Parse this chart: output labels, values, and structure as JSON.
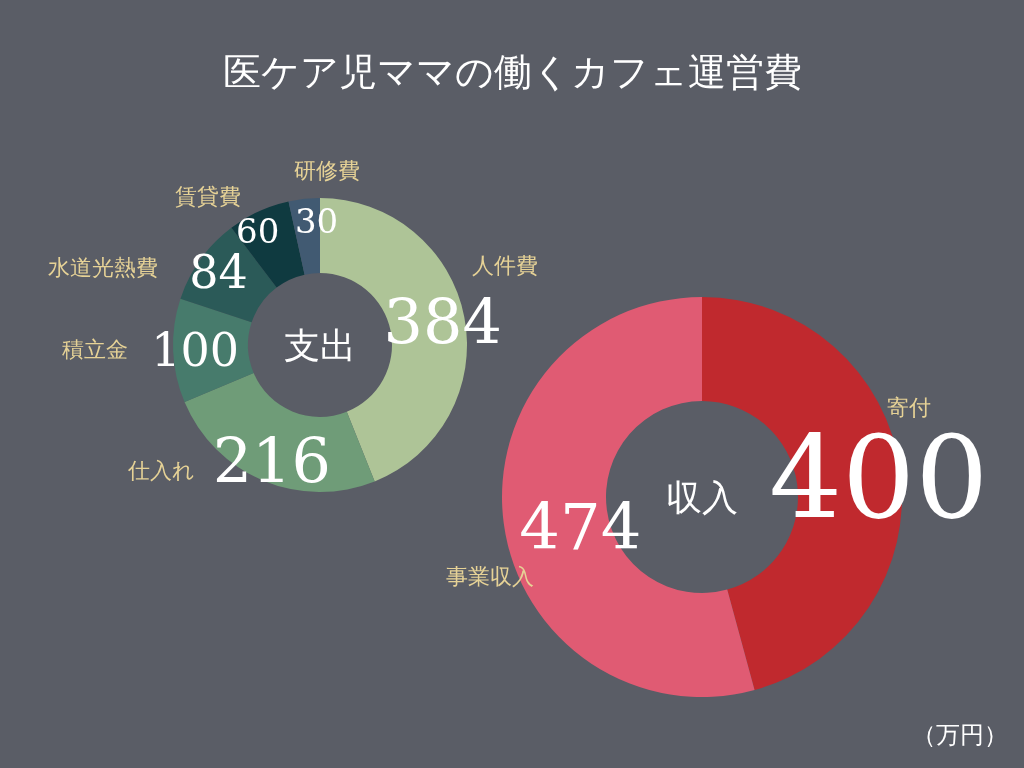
{
  "chart_data": [
    {
      "type": "donut",
      "title": "医ケア児ママの働くカフェ運営費",
      "subtitle": "支出",
      "categories": [
        "人件費",
        "仕入れ",
        "積立金",
        "水道光熱費",
        "賃貸費",
        "研修費"
      ],
      "values": [
        384,
        216,
        100,
        84,
        60,
        30
      ],
      "colors": [
        "#aec497",
        "#6f9c78",
        "#477b6c",
        "#2b5a58",
        "#0f3a40",
        "#415a72"
      ],
      "data_labels": true
    },
    {
      "type": "donut",
      "subtitle": "収入",
      "categories": [
        "寄付",
        "事業収入"
      ],
      "values": [
        400,
        474
      ],
      "colors": [
        "#c0292e",
        "#e05b73"
      ],
      "data_labels": true,
      "annotations": [
        "（万円）"
      ]
    }
  ]
}
